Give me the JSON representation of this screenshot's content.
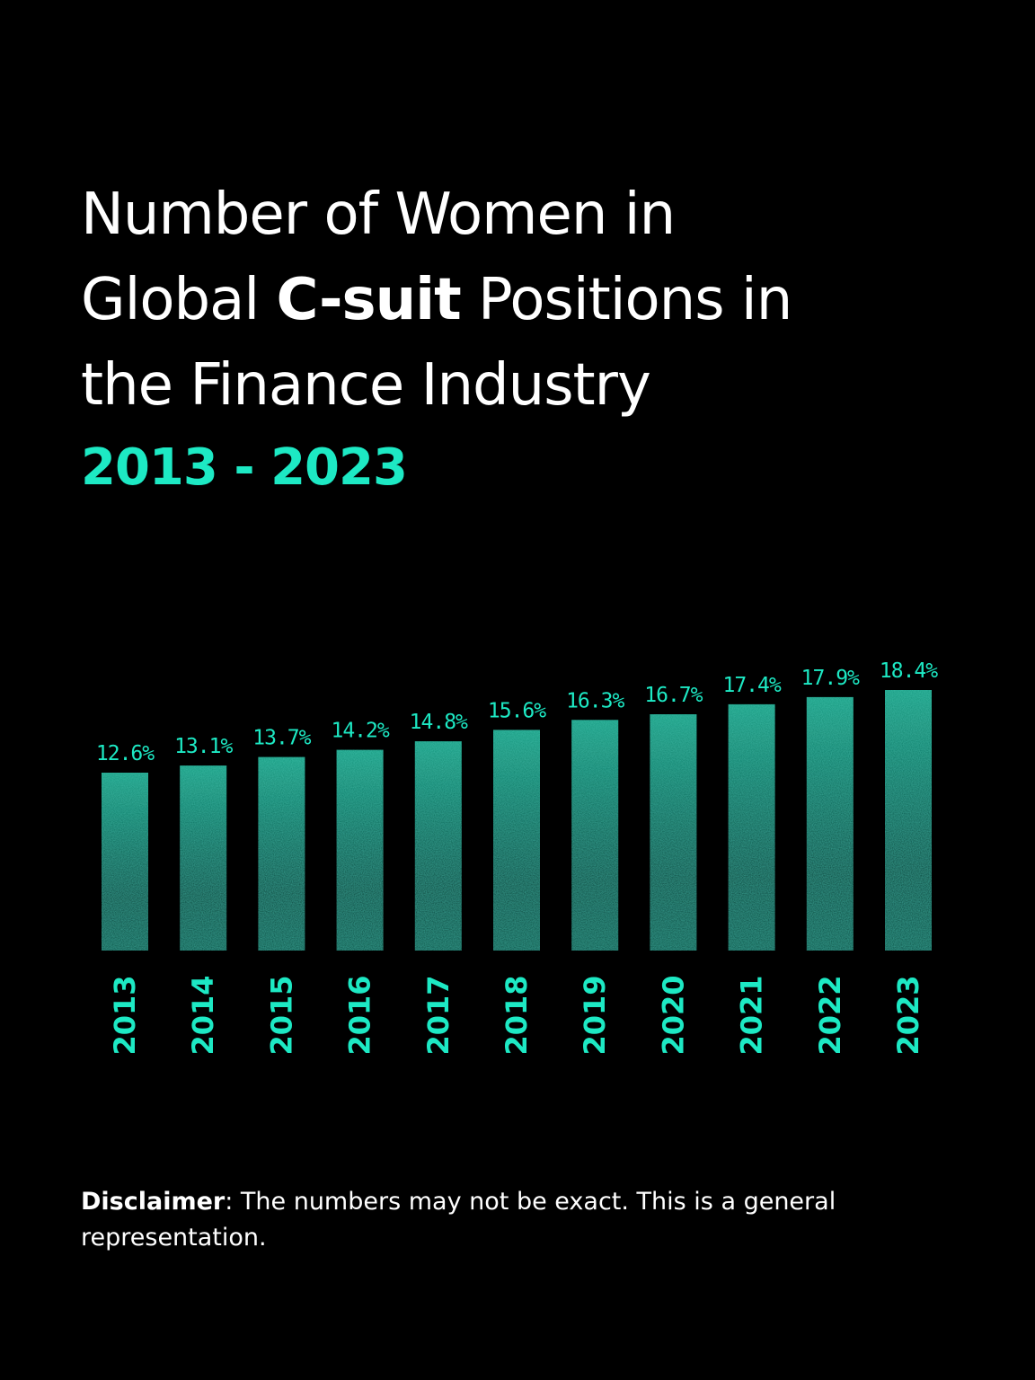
{
  "title": {
    "line1": "Number of Women in",
    "line2_pre": "Global ",
    "line2_bold": "C-suit",
    "line2_post": " Positions in",
    "line3": "the Finance Industry"
  },
  "subtitle": "2013 - 2023",
  "disclaimer": {
    "label": "Disclaimer",
    "text": ": The numbers may not be exact. This is a general representation."
  },
  "colors": {
    "accent": "#1de9c4",
    "bar_top": "#149a80",
    "bar_bottom": "#0a3a32",
    "background": "#000000"
  },
  "chart_data": {
    "type": "bar",
    "categories": [
      "2013",
      "2014",
      "2015",
      "2016",
      "2017",
      "2018",
      "2019",
      "2020",
      "2021",
      "2022",
      "2023"
    ],
    "values": [
      12.6,
      13.1,
      13.7,
      14.2,
      14.8,
      15.6,
      16.3,
      16.7,
      17.4,
      17.9,
      18.4
    ],
    "labels": [
      "12.6%",
      "13.1%",
      "13.7%",
      "14.2%",
      "14.8%",
      "15.6%",
      "16.3%",
      "16.7%",
      "17.4%",
      "17.9%",
      "18.4%"
    ],
    "title": "Number of Women in Global C-suit Positions in the Finance Industry",
    "xlabel": "",
    "ylabel": "",
    "grid": false
  }
}
